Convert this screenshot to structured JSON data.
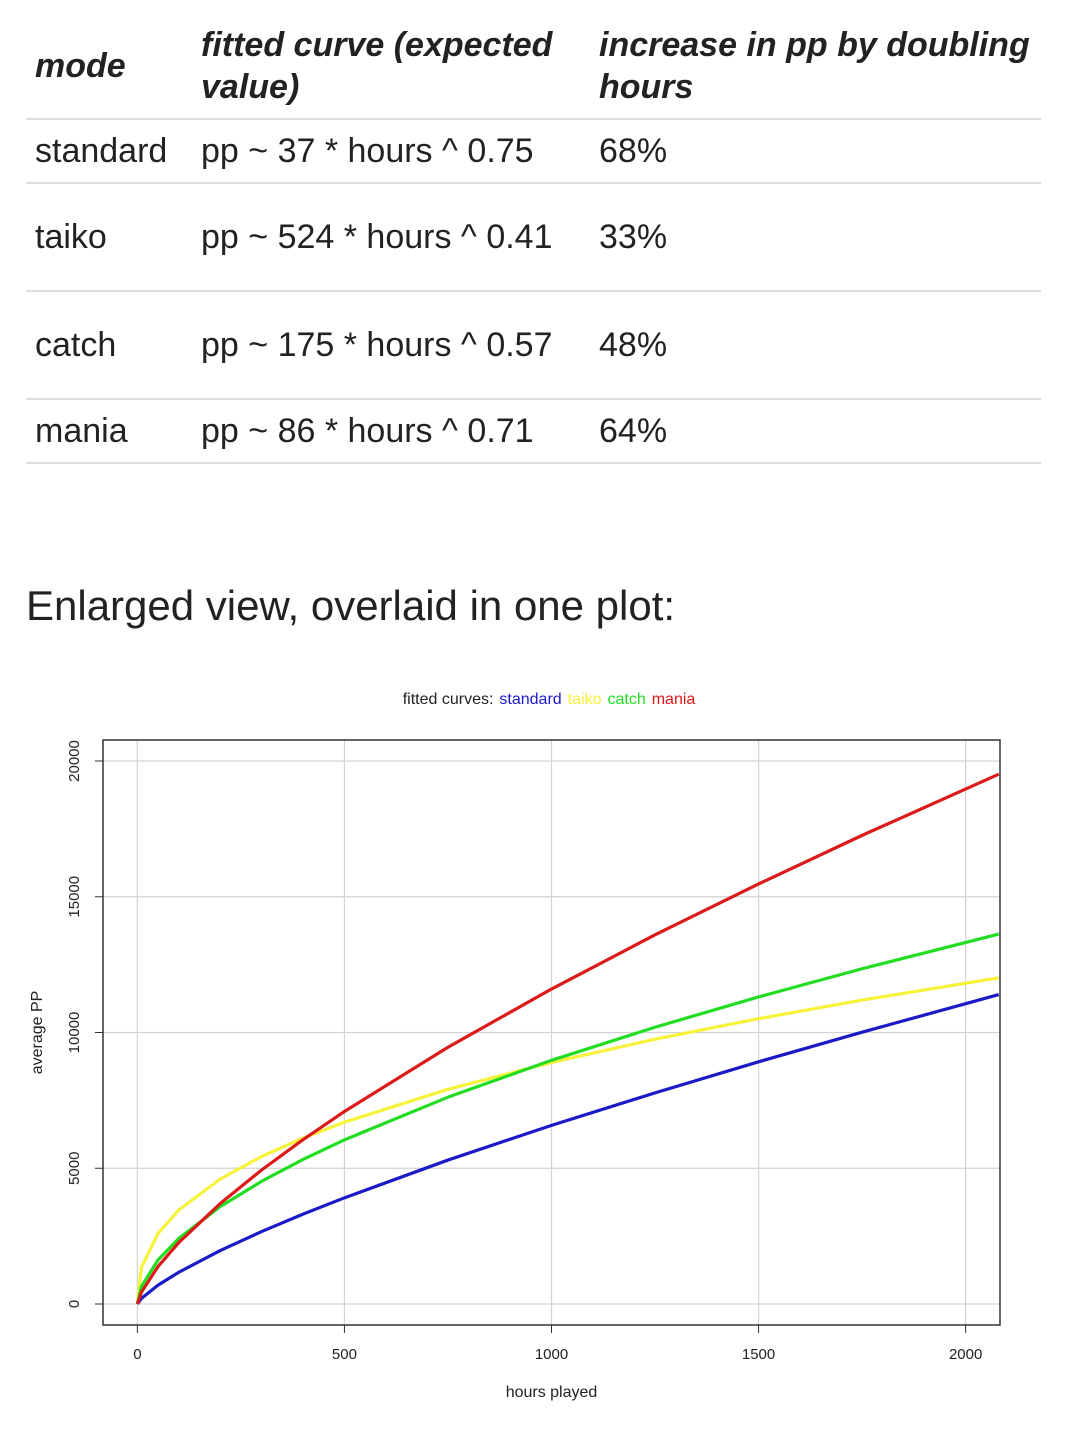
{
  "table": {
    "headers": [
      "mode",
      "fitted curve (expected value)",
      "increase in pp by doubling hours"
    ],
    "rows": [
      [
        "standard",
        "pp ~ 37 * hours ^ 0.75",
        "68%"
      ],
      [
        "taiko",
        "pp ~ 524 * hours ^ 0.41",
        "33%"
      ],
      [
        "catch",
        "pp ~ 175 * hours ^ 0.57",
        "48%"
      ],
      [
        "mania",
        "pp ~ 86 * hours ^ 0.71",
        "64%"
      ]
    ]
  },
  "heading": "Enlarged view, overlaid in one plot:",
  "chart_data": {
    "type": "line",
    "title": "fitted curves:",
    "x_label": "hours played",
    "y_label": "average PP",
    "x": [
      0,
      10,
      50,
      100,
      200,
      300,
      400,
      500,
      750,
      1000,
      1250,
      1500,
      1750,
      2080
    ],
    "series": [
      {
        "name": "standard",
        "color": "#1a1ac8",
        "values": [
          0,
          208,
          696,
          1170,
          1968,
          2668,
          3311,
          3911,
          5302,
          6579,
          7777,
          8921,
          10012,
          11396
        ]
      },
      {
        "name": "taiko",
        "color": "#f7f23a",
        "values": [
          0,
          1347,
          2606,
          3462,
          4599,
          5433,
          6111,
          6697,
          7907,
          8898,
          9753,
          10508,
          11193,
          12015
        ]
      },
      {
        "name": "catch",
        "color": "#22dd22",
        "values": [
          0,
          650,
          1627,
          2415,
          3586,
          4519,
          5325,
          6046,
          7618,
          8976,
          10194,
          11309,
          12348,
          13626
        ]
      },
      {
        "name": "mania",
        "color": "#dd1a1a",
        "values": [
          0,
          441,
          1383,
          2262,
          3701,
          4935,
          6053,
          7091,
          9458,
          11601,
          13597,
          15471,
          17260,
          19513
        ]
      }
    ],
    "xlim": [
      -83,
      2083
    ],
    "ylim": [
      -773,
      20773
    ],
    "xticks": [
      0,
      500,
      1000,
      1500,
      2000
    ],
    "yticks": [
      0,
      5000,
      10000,
      15000,
      20000
    ],
    "grid": true,
    "legend": "top"
  }
}
